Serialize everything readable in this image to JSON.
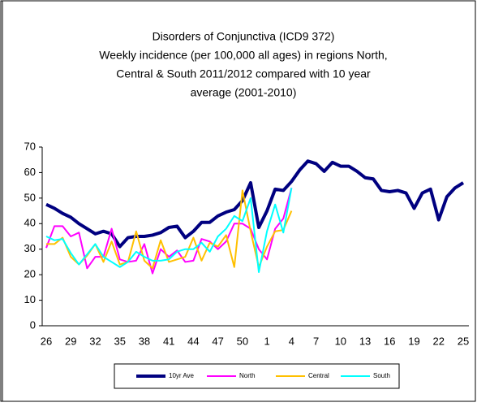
{
  "chart_data": {
    "type": "line",
    "title": [
      "Disorders of Conjunctiva (ICD9 372)",
      "Weekly incidence (per 100,000 all ages) in regions North,",
      "Central & South 2011/2012 compared with 10 year",
      "average (2001-2010)"
    ],
    "categories": [
      "26",
      null,
      null,
      "29",
      null,
      null,
      "32",
      null,
      null,
      "35",
      null,
      null,
      "38",
      null,
      null,
      "41",
      null,
      null,
      "44",
      null,
      null,
      "47",
      null,
      null,
      "50",
      null,
      null,
      "1",
      null,
      null,
      "4",
      null,
      null,
      "7",
      null,
      null,
      "10",
      null,
      null,
      "13",
      null,
      null,
      "16",
      null,
      null,
      "19",
      null,
      null,
      "22",
      null,
      null,
      "25"
    ],
    "series": [
      {
        "name": "10yr Ave",
        "color": "#000080",
        "values": [
          47.5,
          46,
          44,
          42.5,
          40,
          38,
          36,
          37,
          36,
          31,
          34.5,
          35,
          35,
          35.5,
          36.5,
          38.5,
          39,
          34.5,
          37,
          40.5,
          40.5,
          43,
          44.5,
          45.5,
          49,
          56,
          38.5,
          45,
          53.5,
          53,
          56.5,
          61,
          64.5,
          63.5,
          60.5,
          64,
          62.5,
          62.5,
          60.5,
          58,
          57.5,
          53,
          52.5,
          53,
          52,
          46,
          52,
          53.5,
          41.5,
          50.5,
          54,
          56
        ]
      },
      {
        "name": "North",
        "color": "#ff00ff",
        "values": [
          30.5,
          39,
          39,
          35,
          36.5,
          22.5,
          27,
          27,
          38,
          26,
          25,
          25.5,
          32,
          20.5,
          30,
          27,
          29.5,
          25,
          25.5,
          34,
          33,
          30,
          33,
          40,
          40,
          38,
          30,
          26,
          38,
          42,
          54,
          null,
          null,
          null,
          null,
          null,
          null,
          null,
          null,
          null,
          null,
          null,
          null,
          null,
          null,
          null,
          null,
          null,
          null,
          null,
          null,
          null
        ]
      },
      {
        "name": "Central",
        "color": "#ffc000",
        "values": [
          32,
          32,
          34.5,
          27,
          24,
          27.5,
          32,
          25,
          33,
          24,
          25,
          37,
          25.5,
          22.5,
          33.5,
          25,
          26,
          27,
          34.5,
          25.5,
          32.5,
          31,
          35.5,
          23,
          53,
          37,
          23,
          31,
          37,
          37.5,
          45,
          null,
          null,
          null,
          null,
          null,
          null,
          null,
          null,
          null,
          null,
          null,
          null,
          null,
          null,
          null,
          null,
          null,
          null,
          null,
          null,
          null
        ]
      },
      {
        "name": "South",
        "color": "#00ffff",
        "values": [
          35,
          33.5,
          34,
          28.5,
          24,
          28,
          32,
          27,
          25,
          23,
          25,
          29,
          27,
          25.5,
          25.5,
          26,
          29,
          30,
          30,
          32.5,
          29,
          35,
          38,
          43,
          41,
          50,
          21,
          37,
          47.5,
          36.5,
          54,
          null,
          null,
          null,
          null,
          null,
          null,
          null,
          null,
          null,
          null,
          null,
          null,
          null,
          null,
          null,
          null,
          null,
          null,
          null,
          null,
          null
        ]
      }
    ],
    "ylim": [
      0,
      70
    ],
    "yticks": [
      0,
      10,
      20,
      30,
      40,
      50,
      60,
      70
    ],
    "grid": false
  }
}
